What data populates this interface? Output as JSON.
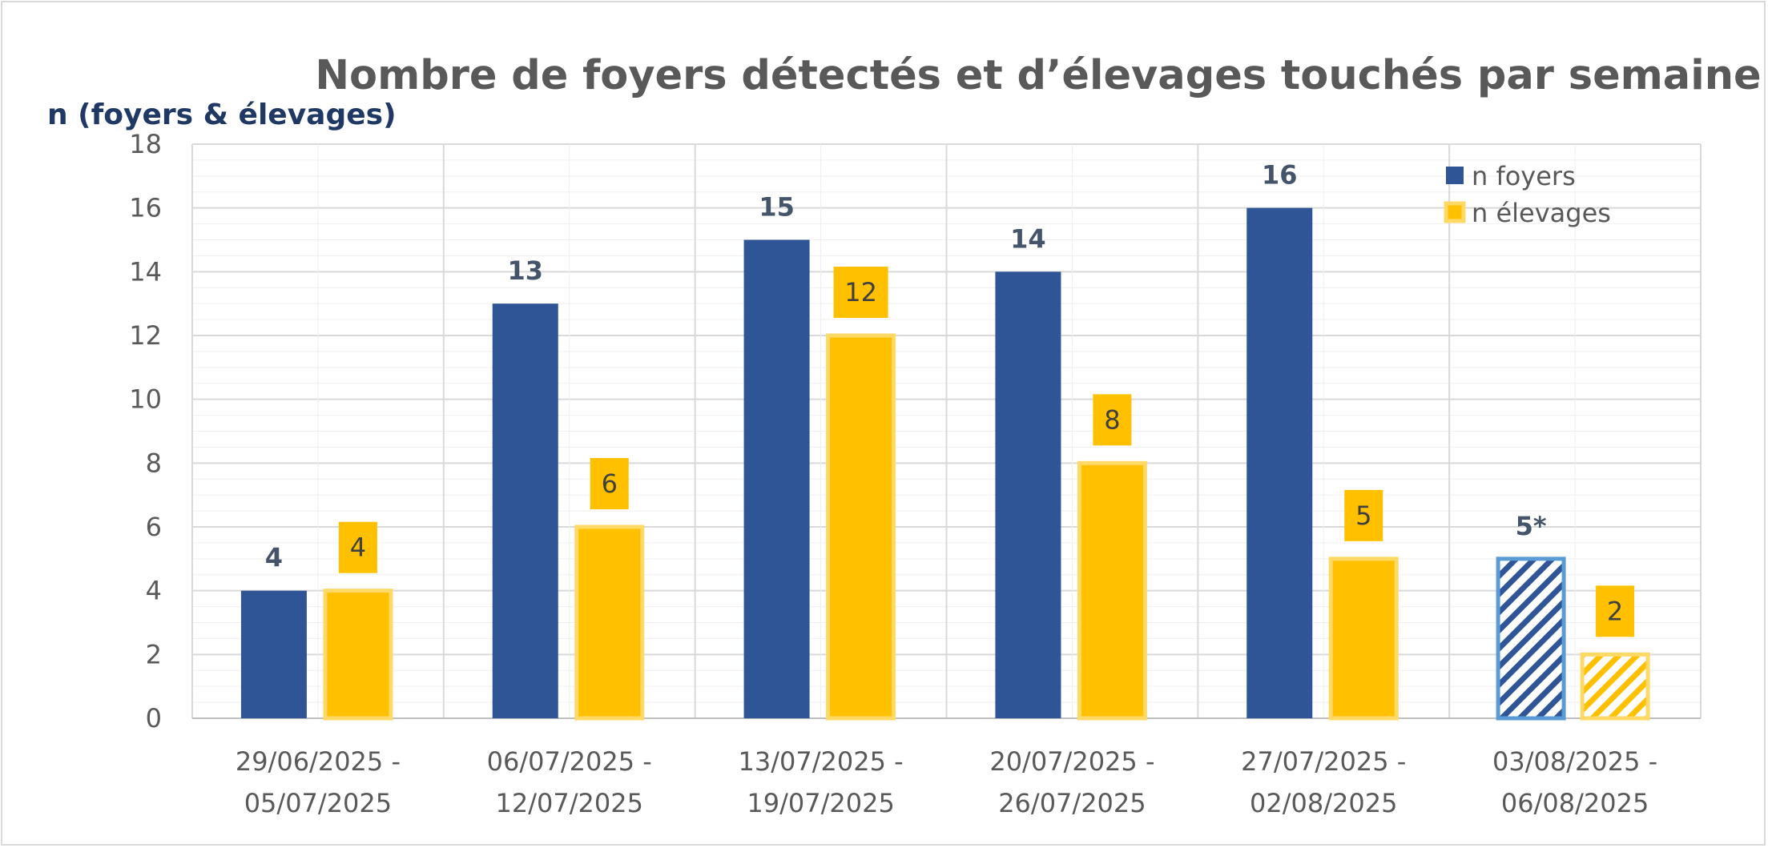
{
  "chart_data": {
    "type": "bar",
    "title": "Nombre de foyers détectés et d’élevages touchés par semaine",
    "ylabel": "n (foyers & élevages)",
    "xlabel": "",
    "ylim": [
      0,
      18
    ],
    "yticks": [
      0,
      2,
      4,
      6,
      8,
      10,
      12,
      14,
      16,
      18
    ],
    "grid": true,
    "legend_position": "top-right",
    "categories": [
      [
        "29/06/2025 -",
        "05/07/2025"
      ],
      [
        "06/07/2025 -",
        "12/07/2025"
      ],
      [
        "13/07/2025 -",
        "19/07/2025"
      ],
      [
        "20/07/2025 -",
        "26/07/2025"
      ],
      [
        "27/07/2025 -",
        "02/08/2025"
      ],
      [
        "03/08/2025 -",
        "06/08/2025"
      ]
    ],
    "series": [
      {
        "name": "n foyers",
        "color": "#2f5597",
        "values": [
          4,
          13,
          15,
          14,
          16,
          5
        ],
        "data_labels": [
          "4",
          "13",
          "15",
          "14",
          "16",
          "5*"
        ],
        "hatched": [
          false,
          false,
          false,
          false,
          false,
          true
        ]
      },
      {
        "name": "n élevages",
        "color": "#ffc000",
        "values": [
          4,
          6,
          12,
          8,
          5,
          2
        ],
        "data_labels": [
          "4",
          "6",
          "12",
          "8",
          "5",
          "2"
        ],
        "hatched": [
          false,
          false,
          false,
          false,
          false,
          true
        ]
      }
    ]
  }
}
